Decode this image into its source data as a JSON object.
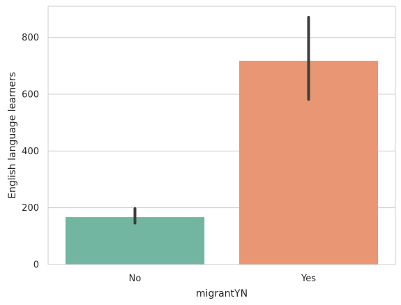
{
  "chart_data": {
    "type": "bar",
    "xlabel": "migrantYN",
    "ylabel": "English language learners",
    "categories": [
      "No",
      "Yes"
    ],
    "values": [
      167,
      718
    ],
    "error_bars": [
      {
        "low": 146,
        "high": 197
      },
      {
        "low": 582,
        "high": 871
      }
    ],
    "ylim": [
      0,
      910
    ],
    "yticks": [
      0,
      200,
      400,
      600,
      800
    ],
    "grid": true,
    "bar_colors": [
      "#72b6a1",
      "#e99675"
    ],
    "errorbar_color": "#3d3d3d",
    "gridline_color": "#cccccc",
    "spine_color": "#cccccc"
  }
}
